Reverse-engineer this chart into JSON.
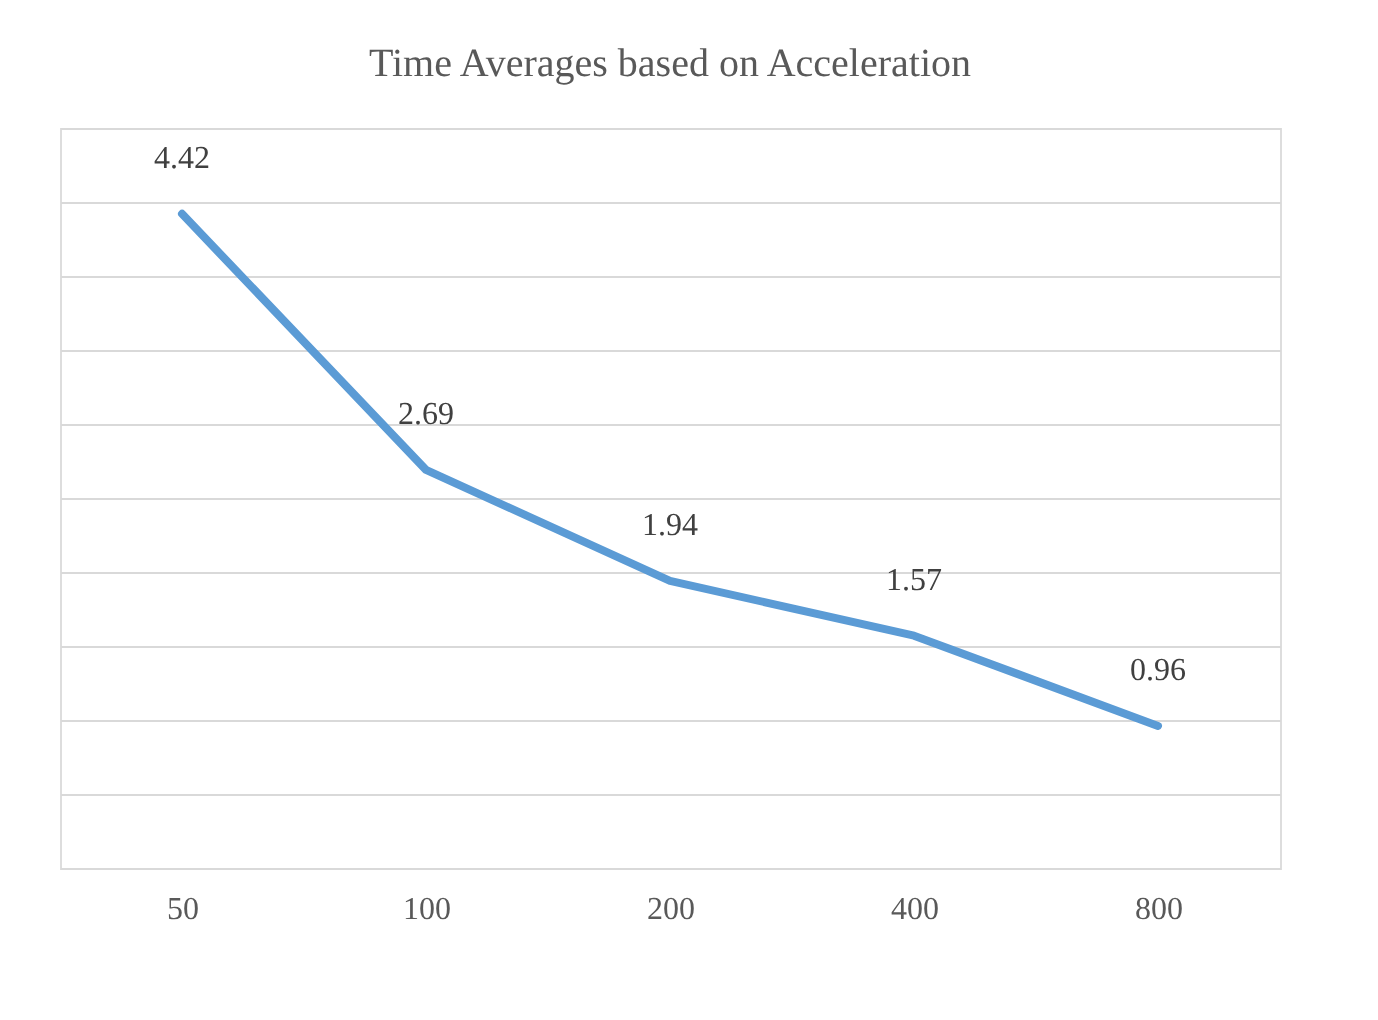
{
  "chart_data": {
    "type": "line",
    "title": "Time Averages based on Acceleration",
    "categories": [
      "50",
      "100",
      "200",
      "400",
      "800"
    ],
    "series": [
      {
        "color": "#5b9bd5",
        "values": [
          4.42,
          2.69,
          1.94,
          1.57,
          0.96
        ]
      }
    ],
    "ylim": [
      0,
      5
    ],
    "yticks": [
      {
        "value": 0,
        "label": null
      },
      {
        "value": 0.5,
        "label": null
      },
      {
        "value": 1,
        "label": null
      },
      {
        "value": 1.5,
        "label": null
      },
      {
        "value": 2,
        "label": null
      },
      {
        "value": 2.5,
        "label": null
      },
      {
        "value": 3,
        "label": null
      },
      {
        "value": 3.5,
        "label": null
      },
      {
        "value": 4,
        "label": null
      },
      {
        "value": 4.5,
        "label": null
      },
      {
        "value": 5,
        "label": null
      }
    ],
    "grid": "y",
    "tick_labels": "x",
    "data_labels": true,
    "marker": "none",
    "line_style": "solid"
  }
}
